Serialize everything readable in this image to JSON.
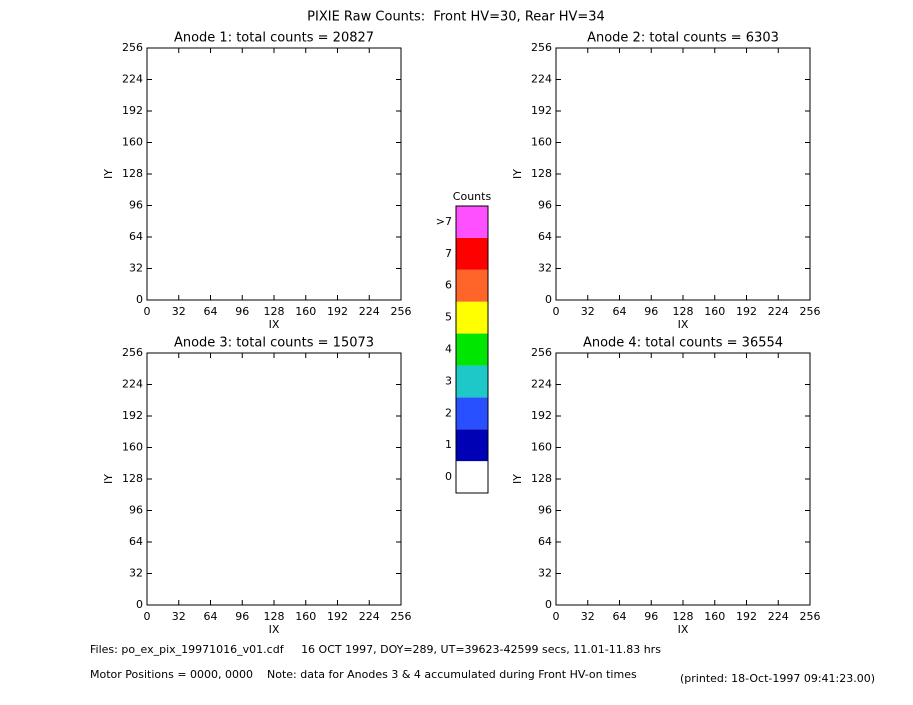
{
  "title": "PIXIE Raw Counts:  Front HV=30, Rear HV=34",
  "chart_data": [
    {
      "type": "heatmap",
      "title": "Anode 1: total counts = 20827",
      "x_label": "IX",
      "y_label": "IY",
      "xlim": [
        0,
        256
      ],
      "ylim": [
        0,
        256
      ],
      "xticks": [
        0,
        32,
        64,
        96,
        128,
        160,
        192,
        224,
        256
      ],
      "yticks": [
        0,
        32,
        64,
        96,
        128,
        160,
        192,
        224,
        256
      ]
    },
    {
      "type": "heatmap",
      "title": "Anode 2: total counts = 6303",
      "x_label": "IX",
      "y_label": "IY",
      "xlim": [
        0,
        256
      ],
      "ylim": [
        0,
        256
      ],
      "xticks": [
        0,
        32,
        64,
        96,
        128,
        160,
        192,
        224,
        256
      ],
      "yticks": [
        0,
        32,
        64,
        96,
        128,
        160,
        192,
        224,
        256
      ]
    },
    {
      "type": "heatmap",
      "title": "Anode 3: total counts = 15073",
      "x_label": "IX",
      "y_label": "IY",
      "xlim": [
        0,
        256
      ],
      "ylim": [
        0,
        256
      ],
      "xticks": [
        0,
        32,
        64,
        96,
        128,
        160,
        192,
        224,
        256
      ],
      "yticks": [
        0,
        32,
        64,
        96,
        128,
        160,
        192,
        224,
        256
      ]
    },
    {
      "type": "heatmap",
      "title": "Anode 4: total counts = 36554",
      "x_label": "IX",
      "y_label": "IY",
      "xlim": [
        0,
        256
      ],
      "ylim": [
        0,
        256
      ],
      "xticks": [
        0,
        32,
        64,
        96,
        128,
        160,
        192,
        224,
        256
      ],
      "yticks": [
        0,
        32,
        64,
        96,
        128,
        160,
        192,
        224,
        256
      ]
    }
  ],
  "colorbar": {
    "title": "Counts",
    "levels": [
      {
        "label": "0",
        "color": "#ffffff"
      },
      {
        "label": "1",
        "color": "#0000b4"
      },
      {
        "label": "2",
        "color": "#2850ff"
      },
      {
        "label": "3",
        "color": "#1ec8c8"
      },
      {
        "label": "4",
        "color": "#00e600"
      },
      {
        "label": "5",
        "color": "#ffff00"
      },
      {
        "label": "6",
        "color": "#ff6428"
      },
      {
        "label": "7",
        "color": "#ff0000"
      },
      {
        "label": ">7",
        "color": "#ff50ff"
      }
    ]
  },
  "footer": {
    "files": "Files: po_ex_pix_19971016_v01.cdf     16 OCT 1997, DOY=289, UT=39623-42599 secs, 11.01-11.83 hrs",
    "motor": "Motor Positions = 0000, 0000    Note: data for Anodes 3 & 4 accumulated during Front HV-on times",
    "printed": "(printed: 18-Oct-1997 09:41:23.00)"
  }
}
